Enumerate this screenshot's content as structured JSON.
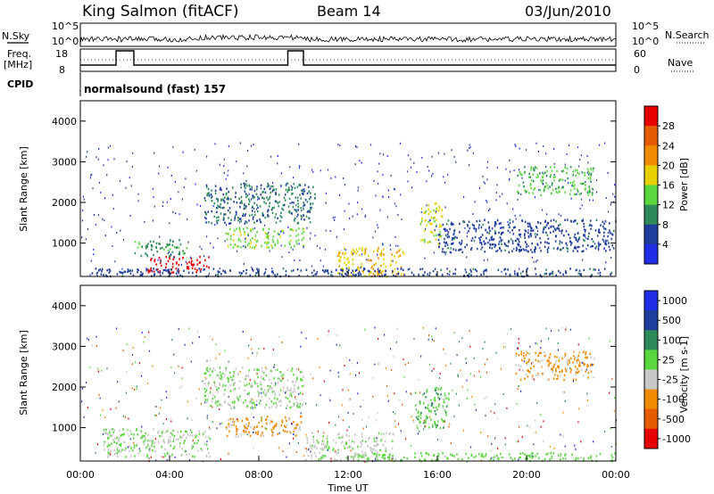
{
  "header": {
    "station": "King Salmon (fitACF)",
    "beam": "Beam 14",
    "date": "03/Jun/2010"
  },
  "strip": {
    "nsky_label": "N.Sky",
    "nsky_ticks": [
      "10^5",
      "10^0"
    ],
    "nsearch_label": "N.Search",
    "nsearch_ticks": [
      "10^5",
      "10^0"
    ],
    "freq_label": "Freq.",
    "freq_unit": "[MHz]",
    "freq_ticks": [
      "18",
      "8"
    ],
    "nave_label": "Nave",
    "nave_ticks": [
      "60",
      "0"
    ],
    "cpid_label": "CPID",
    "cpid_value": "normalsound (fast) 157"
  },
  "x_axis": {
    "label": "Time UT",
    "ticks": [
      "00:00",
      "04:00",
      "08:00",
      "12:00",
      "16:00",
      "20:00",
      "00:00"
    ]
  },
  "colors": {
    "power": [
      "#1f2ee6",
      "#1f3d9a",
      "#2e8a5a",
      "#5ad63e",
      "#e6d000",
      "#f08a00",
      "#e65a00",
      "#e60000"
    ],
    "velocity": [
      "#e60000",
      "#e65a00",
      "#f08a00",
      "#c8c8c8",
      "#5ad63e",
      "#2e8a5a",
      "#1f3d9a",
      "#1f2ee6"
    ]
  },
  "chart_data": [
    {
      "type": "heatmap",
      "name": "power-panel",
      "ylabel": "Slant Range [km]",
      "yticks": [
        "4000",
        "3000",
        "2000",
        "1000"
      ],
      "ylim": [
        180,
        4500
      ],
      "xlim_hours": [
        0,
        24
      ],
      "colorbar_label": "Power [dB]",
      "colorbar_ticks": [
        "28",
        "24",
        "20",
        "16",
        "12",
        "8",
        "4"
      ],
      "clim": [
        0,
        30
      ],
      "regions": [
        {
          "t0": 3.0,
          "t1": 5.8,
          "r0": 300,
          "r1": 700,
          "value": 28
        },
        {
          "t0": 2.4,
          "t1": 4.8,
          "r0": 700,
          "r1": 1100,
          "value": 10
        },
        {
          "t0": 5.5,
          "t1": 10.5,
          "r0": 1500,
          "r1": 2500,
          "value": 8
        },
        {
          "t0": 6.5,
          "t1": 10.0,
          "r0": 900,
          "r1": 1400,
          "value": 14
        },
        {
          "t0": 11.5,
          "t1": 14.5,
          "r0": 200,
          "r1": 900,
          "value": 18
        },
        {
          "t0": 15.2,
          "t1": 16.2,
          "r0": 1000,
          "r1": 2000,
          "value": 16
        },
        {
          "t0": 16.0,
          "t1": 24.0,
          "r0": 800,
          "r1": 1600,
          "value": 6
        },
        {
          "t0": 19.5,
          "t1": 23.0,
          "r0": 2200,
          "r1": 2900,
          "value": 12
        },
        {
          "t0": 0.5,
          "t1": 24.0,
          "r0": 200,
          "r1": 400,
          "value": 6
        }
      ]
    },
    {
      "type": "heatmap",
      "name": "velocity-panel",
      "ylabel": "Slant Range [km]",
      "yticks": [
        "4000",
        "3000",
        "2000",
        "1000"
      ],
      "ylim": [
        180,
        4500
      ],
      "xlim_hours": [
        0,
        24
      ],
      "colorbar_label": "Velocity [m s-1]",
      "colorbar_ticks": [
        "1000",
        "500",
        "100",
        "25",
        "-25",
        "-100",
        "-500",
        "-1000"
      ],
      "clim": [
        -1000,
        1000
      ],
      "regions": [
        {
          "t0": 1.0,
          "t1": 5.8,
          "r0": 300,
          "r1": 1000,
          "value": 0
        },
        {
          "t0": 5.5,
          "t1": 10.0,
          "r0": 1500,
          "r1": 2500,
          "value": 0
        },
        {
          "t0": 6.5,
          "t1": 10.0,
          "r0": 800,
          "r1": 1300,
          "value": -300
        },
        {
          "t0": 10.0,
          "t1": 14.0,
          "r0": 200,
          "r1": 900,
          "value": -50
        },
        {
          "t0": 15.0,
          "t1": 16.5,
          "r0": 1000,
          "r1": 2000,
          "value": 200
        },
        {
          "t0": 12.0,
          "t1": 24.0,
          "r0": 200,
          "r1": 400,
          "value": 100
        },
        {
          "t0": 19.5,
          "t1": 23.0,
          "r0": 2200,
          "r1": 2900,
          "value": -300
        }
      ]
    }
  ]
}
